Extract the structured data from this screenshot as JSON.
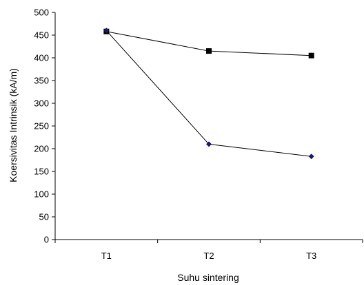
{
  "chart_data": {
    "type": "line",
    "title": "",
    "xlabel": "Suhu sintering",
    "ylabel": "Koersivitas Intrinsik (kA/m)",
    "categories": [
      "T1",
      "T2",
      "T3"
    ],
    "ylim": [
      0,
      500
    ],
    "yticks": [
      0,
      50,
      100,
      150,
      200,
      250,
      300,
      350,
      400,
      450,
      500
    ],
    "grid": false,
    "legend": "none",
    "series": [
      {
        "marker": "square",
        "color": "#000000",
        "values": [
          458,
          415,
          405
        ]
      },
      {
        "marker": "diamond",
        "color": "#1a1a5e",
        "values": [
          460,
          210,
          183
        ]
      }
    ]
  }
}
